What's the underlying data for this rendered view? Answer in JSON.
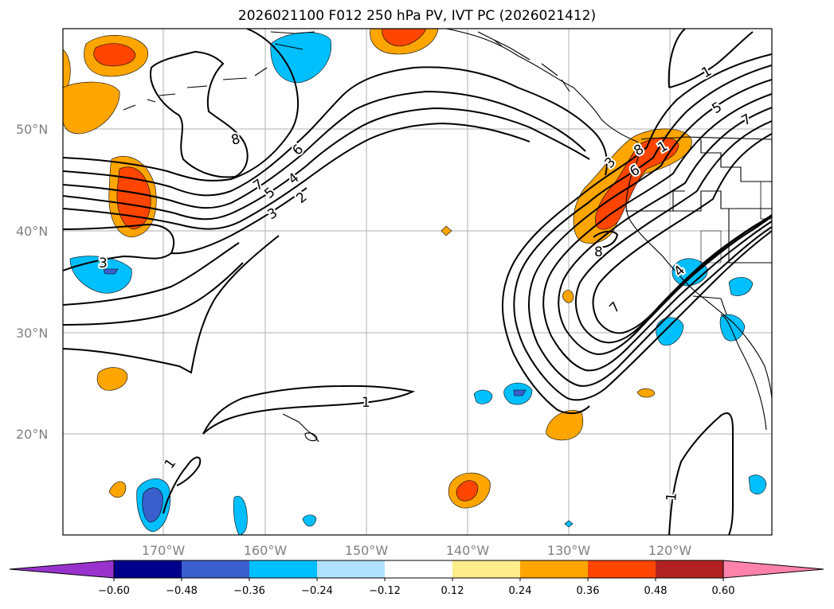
{
  "title": "2026021100 F012 250 hPa PV, IVT PC (2026021412)",
  "lat_labels": [
    "50°N",
    "40°N",
    "30°N",
    "20°N"
  ],
  "lon_labels": [
    "170°W",
    "160°W",
    "150°W",
    "140°W",
    "130°W",
    "120°W"
  ],
  "contour_labels": [
    "1",
    "1",
    "1",
    "1",
    "1",
    "2",
    "3",
    "3",
    "3",
    "4",
    "4",
    "5",
    "5",
    "6",
    "6",
    "7",
    "7",
    "7",
    "8",
    "8",
    "8"
  ],
  "colorbar": {
    "ticks": [
      "−0.60",
      "−0.48",
      "−0.36",
      "−0.24",
      "−0.12",
      "0.12",
      "0.24",
      "0.36",
      "0.48",
      "0.60"
    ],
    "colors": [
      "#9932cc",
      "#00008b",
      "#3a5fcd",
      "#00bfff",
      "#b0e2ff",
      "#ffffff",
      "#ffec8b",
      "#ffa500",
      "#ff4500",
      "#b22222",
      "#ff82ab"
    ]
  }
}
